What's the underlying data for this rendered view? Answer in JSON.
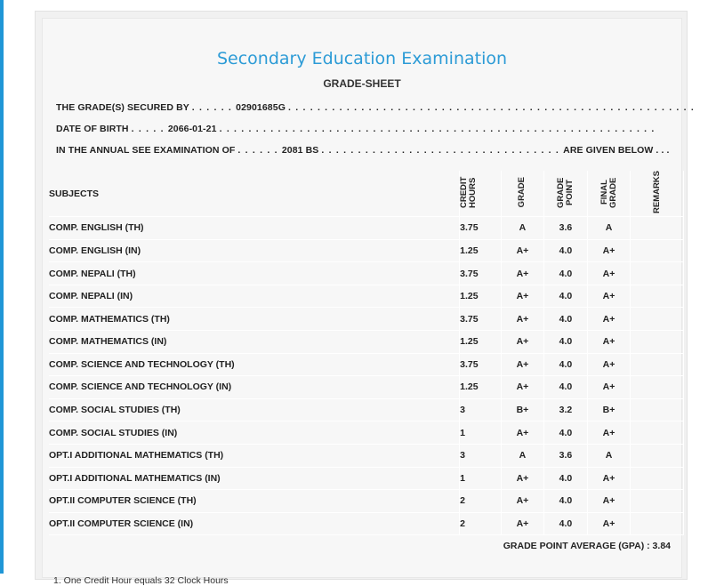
{
  "header": {
    "title": "Secondary Education Examination",
    "subtitle": "GRADE-SHEET"
  },
  "info": {
    "secured_label": "THE GRADE(S) SECURED BY",
    "secured_value": "02901685G",
    "dob_label": "DATE OF BIRTH",
    "dob_value": "2066-01-21",
    "exam_label": "IN THE ANNUAL SEE EXAMINATION OF",
    "exam_value": "2081 BS",
    "exam_suffix": "ARE GIVEN BELOW . . ."
  },
  "table": {
    "headers": {
      "subjects": "SUBJECTS",
      "credit_hours": "CREDIT HOURS",
      "grade": "GRADE",
      "grade_point": "GRADE POINT",
      "final_grade": "FINAL GRADE",
      "remarks": "REMARKS"
    },
    "rows": [
      {
        "subject": "COMP. ENGLISH (TH)",
        "credit": "3.75",
        "grade": "A",
        "gp": "3.6",
        "final": "A"
      },
      {
        "subject": "COMP. ENGLISH (IN)",
        "credit": "1.25",
        "grade": "A+",
        "gp": "4.0",
        "final": "A+"
      },
      {
        "subject": "COMP. NEPALI (TH)",
        "credit": "3.75",
        "grade": "A+",
        "gp": "4.0",
        "final": "A+"
      },
      {
        "subject": "COMP. NEPALI (IN)",
        "credit": "1.25",
        "grade": "A+",
        "gp": "4.0",
        "final": "A+"
      },
      {
        "subject": "COMP. MATHEMATICS (TH)",
        "credit": "3.75",
        "grade": "A+",
        "gp": "4.0",
        "final": "A+"
      },
      {
        "subject": "COMP. MATHEMATICS (IN)",
        "credit": "1.25",
        "grade": "A+",
        "gp": "4.0",
        "final": "A+"
      },
      {
        "subject": "COMP. SCIENCE AND TECHNOLOGY (TH)",
        "credit": "3.75",
        "grade": "A+",
        "gp": "4.0",
        "final": "A+"
      },
      {
        "subject": "COMP. SCIENCE AND TECHNOLOGY (IN)",
        "credit": "1.25",
        "grade": "A+",
        "gp": "4.0",
        "final": "A+"
      },
      {
        "subject": "COMP. SOCIAL STUDIES (TH)",
        "credit": "3",
        "grade": "B+",
        "gp": "3.2",
        "final": "B+"
      },
      {
        "subject": "COMP. SOCIAL STUDIES (IN)",
        "credit": "1",
        "grade": "A+",
        "gp": "4.0",
        "final": "A+"
      },
      {
        "subject": "OPT.I ADDITIONAL MATHEMATICS (TH)",
        "credit": "3",
        "grade": "A",
        "gp": "3.6",
        "final": "A"
      },
      {
        "subject": "OPT.I ADDITIONAL MATHEMATICS (IN)",
        "credit": "1",
        "grade": "A+",
        "gp": "4.0",
        "final": "A+"
      },
      {
        "subject": "OPT.II COMPUTER SCIENCE (TH)",
        "credit": "2",
        "grade": "A+",
        "gp": "4.0",
        "final": "A+"
      },
      {
        "subject": "OPT.II COMPUTER SCIENCE (IN)",
        "credit": "2",
        "grade": "A+",
        "gp": "4.0",
        "final": "A+"
      }
    ]
  },
  "summary": {
    "gpa_text": "GRADE POINT AVERAGE (GPA) : 3.84"
  },
  "footnote": "1. One Credit Hour equals 32 Clock Hours",
  "colors": {
    "accent_bar": "#1f96d6",
    "title": "#2c9bd6"
  }
}
